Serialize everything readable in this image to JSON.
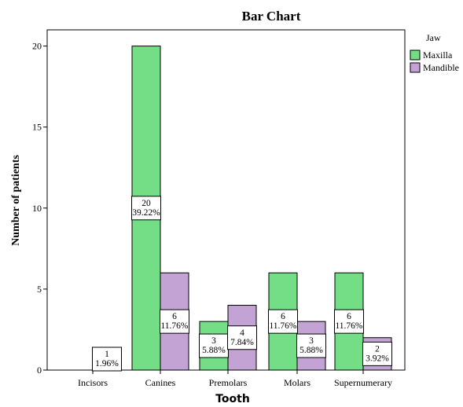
{
  "chart_data": {
    "type": "bar",
    "title": "Bar Chart",
    "xlabel": "Tooth",
    "ylabel": "Number of patients",
    "categories": [
      "Incisors",
      "Canines",
      "Premolars",
      "Molars",
      "Supernumerary"
    ],
    "ylim": [
      0,
      21
    ],
    "yticks": [
      0,
      5,
      10,
      15,
      20
    ],
    "grid": false,
    "legend": {
      "title": "Jaw",
      "placement": "top-right"
    },
    "series": [
      {
        "name": "Maxilla",
        "color": "#73de86",
        "values": [
          null,
          20,
          3,
          6,
          6
        ],
        "labels": [
          null,
          "20|39.22%",
          "3|5.88%",
          "6|11.76%",
          "6|11.76%"
        ]
      },
      {
        "name": "Mandible",
        "color": "#c3a3d3",
        "values": [
          1,
          6,
          4,
          3,
          2
        ],
        "labels": [
          "1|1.96%",
          "6|11.76%",
          "4|7.84%",
          "3|5.88%",
          "2|3.92%"
        ]
      }
    ]
  }
}
